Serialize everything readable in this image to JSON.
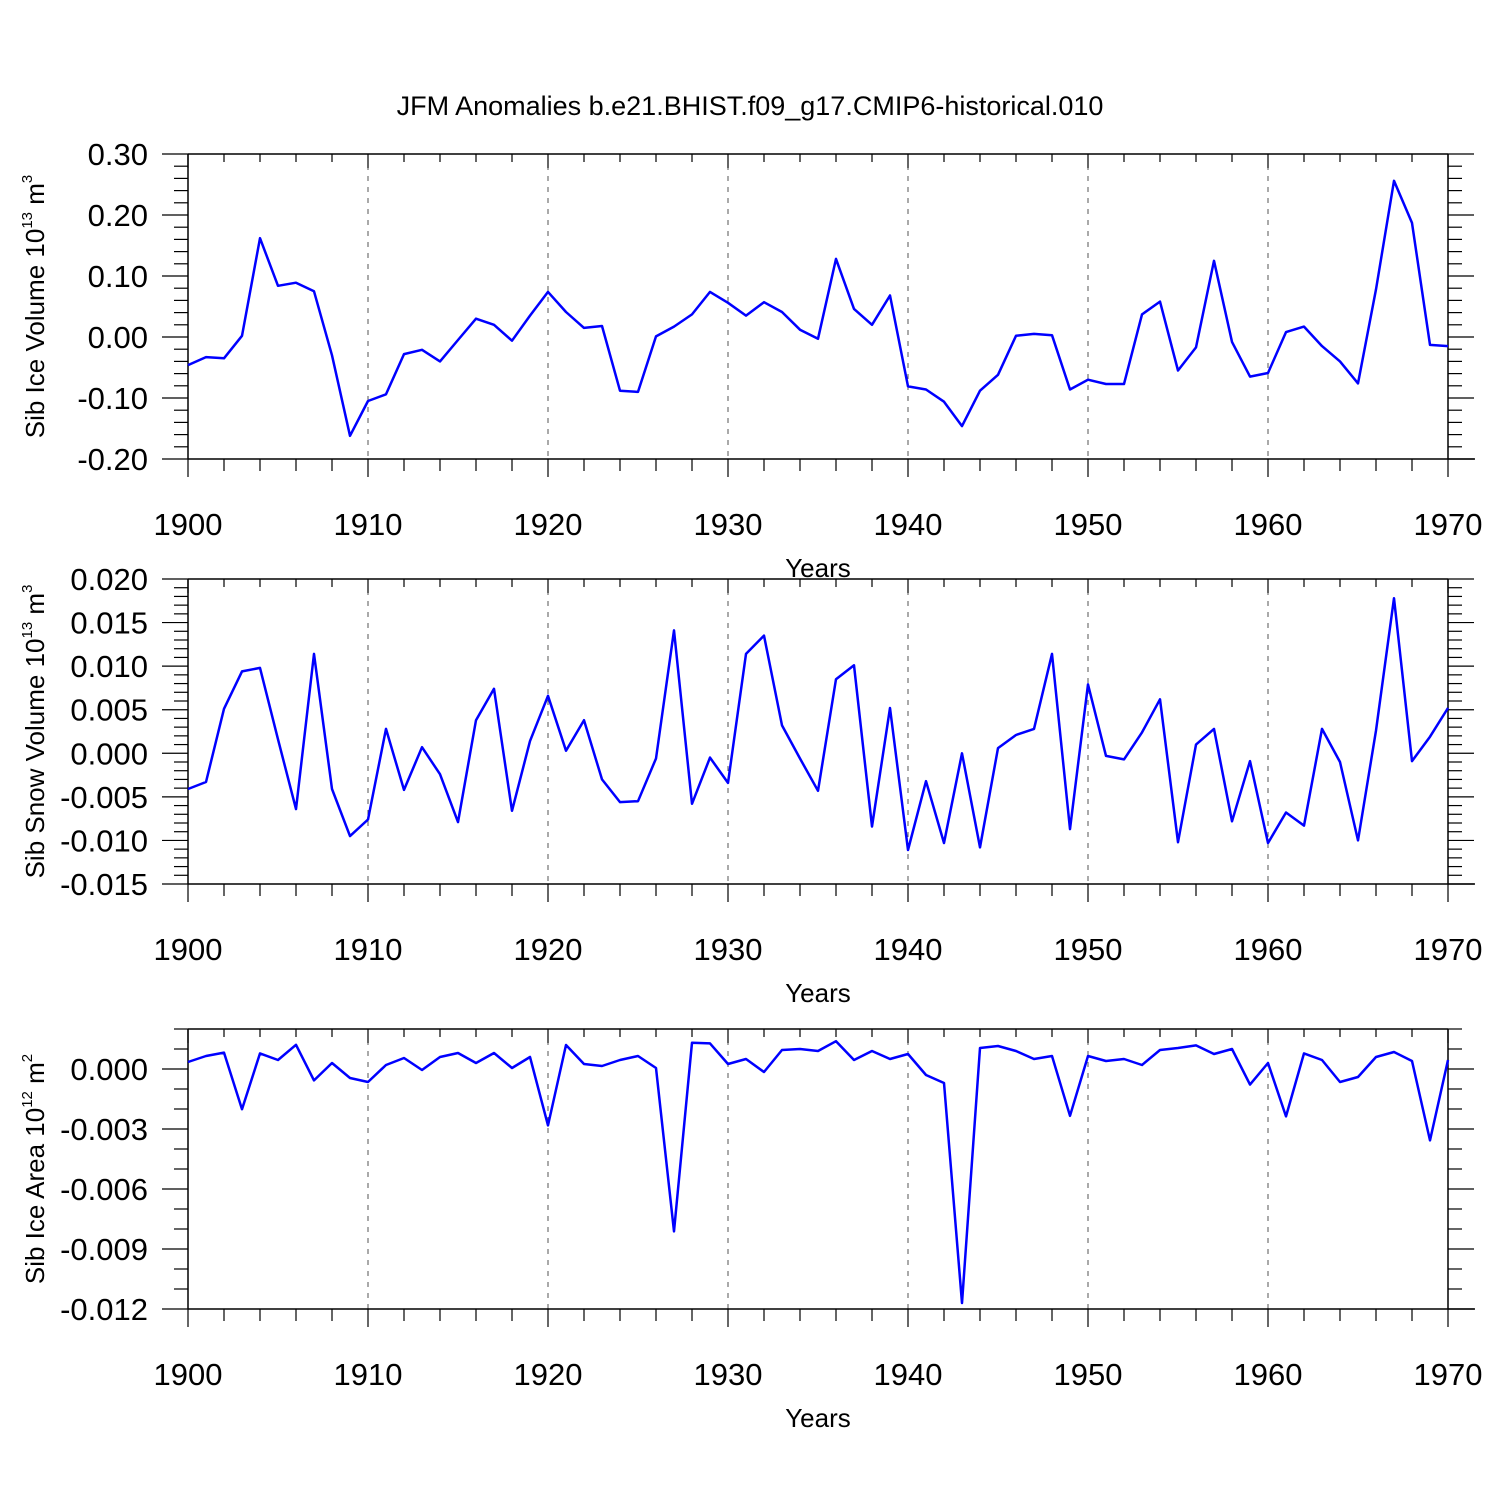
{
  "title": "JFM Anomalies b.e21.BHIST.f09_g17.CMIP6-historical.010",
  "colors": {
    "line": "#0000ff",
    "axis": "#000000",
    "grid": "#000000"
  },
  "chart_data": [
    {
      "type": "line",
      "title": "JFM Anomalies b.e21.BHIST.f09_g17.CMIP6-historical.010",
      "xlabel": "Years",
      "ylabel": {
        "base": "Sib Ice Volume 10",
        "exp": "13",
        "unit": " m",
        "unit_exp": "3"
      },
      "xlim": [
        1900,
        1970
      ],
      "ylim": [
        -0.2,
        0.3
      ],
      "x_ticks": [
        1900,
        1910,
        1920,
        1930,
        1940,
        1950,
        1960,
        1970
      ],
      "x_tick_labels": [
        "1900",
        "1910",
        "1920",
        "1930",
        "1940",
        "1950",
        "1960",
        "1970"
      ],
      "y_ticks": [
        -0.2,
        -0.1,
        0.0,
        0.1,
        0.2,
        0.3
      ],
      "y_tick_labels": [
        "-0.20",
        "-0.10",
        "0.00",
        "0.10",
        "0.20",
        "0.30"
      ],
      "y_minor_step": 0.02,
      "vertical_grid": "dashed at major x ticks",
      "series": [
        {
          "name": "Sib Ice Volume",
          "x": [
            1900,
            1901,
            1902,
            1903,
            1904,
            1905,
            1906,
            1907,
            1908,
            1909,
            1910,
            1911,
            1912,
            1913,
            1914,
            1915,
            1916,
            1917,
            1918,
            1919,
            1920,
            1921,
            1922,
            1923,
            1924,
            1925,
            1926,
            1927,
            1928,
            1929,
            1930,
            1931,
            1932,
            1933,
            1934,
            1935,
            1936,
            1937,
            1938,
            1939,
            1940,
            1941,
            1942,
            1943,
            1944,
            1945,
            1946,
            1947,
            1948,
            1949,
            1950,
            1951,
            1952,
            1953,
            1954,
            1955,
            1956,
            1957,
            1958,
            1959,
            1960,
            1961,
            1962,
            1963,
            1964,
            1965,
            1966,
            1967,
            1968,
            1969,
            1970
          ],
          "values": [
            -0.046,
            -0.033,
            -0.035,
            0.002,
            0.162,
            0.084,
            0.089,
            0.075,
            -0.03,
            -0.162,
            -0.105,
            -0.094,
            -0.028,
            -0.021,
            -0.04,
            -0.005,
            0.03,
            0.02,
            -0.006,
            0.035,
            0.074,
            0.041,
            0.015,
            0.018,
            -0.088,
            -0.09,
            0.001,
            0.017,
            0.037,
            0.074,
            0.056,
            0.035,
            0.057,
            0.041,
            0.012,
            -0.003,
            0.128,
            0.046,
            0.02,
            0.068,
            -0.081,
            -0.086,
            -0.106,
            -0.146,
            -0.088,
            -0.062,
            0.002,
            0.005,
            0.003,
            -0.086,
            -0.07,
            -0.077,
            -0.077,
            0.037,
            0.058,
            -0.055,
            -0.017,
            0.125,
            -0.008,
            -0.065,
            -0.059,
            0.008,
            0.017,
            -0.015,
            -0.04,
            -0.076,
            0.078,
            0.256,
            0.187,
            -0.013,
            -0.015
          ]
        }
      ]
    },
    {
      "type": "line",
      "xlabel": "Years",
      "ylabel": {
        "base": "Sib Snow Volume 10",
        "exp": "13",
        "unit": " m",
        "unit_exp": "3"
      },
      "xlim": [
        1900,
        1970
      ],
      "ylim": [
        -0.015,
        0.02
      ],
      "x_ticks": [
        1900,
        1910,
        1920,
        1930,
        1940,
        1950,
        1960,
        1970
      ],
      "x_tick_labels": [
        "1900",
        "1910",
        "1920",
        "1930",
        "1940",
        "1950",
        "1960",
        "1970"
      ],
      "y_ticks": [
        -0.015,
        -0.01,
        -0.005,
        0.0,
        0.005,
        0.01,
        0.015,
        0.02
      ],
      "y_tick_labels": [
        "-0.015",
        "-0.010",
        "-0.005",
        "0.000",
        "0.005",
        "0.010",
        "0.015",
        "0.020"
      ],
      "y_minor_step": 0.001,
      "vertical_grid": "dashed at major x ticks",
      "series": [
        {
          "name": "Sib Snow Volume",
          "x": [
            1900,
            1901,
            1902,
            1903,
            1904,
            1905,
            1906,
            1907,
            1908,
            1909,
            1910,
            1911,
            1912,
            1913,
            1914,
            1915,
            1916,
            1917,
            1918,
            1919,
            1920,
            1921,
            1922,
            1923,
            1924,
            1925,
            1926,
            1927,
            1928,
            1929,
            1930,
            1931,
            1932,
            1933,
            1934,
            1935,
            1936,
            1937,
            1938,
            1939,
            1940,
            1941,
            1942,
            1943,
            1944,
            1945,
            1946,
            1947,
            1948,
            1949,
            1950,
            1951,
            1952,
            1953,
            1954,
            1955,
            1956,
            1957,
            1958,
            1959,
            1960,
            1961,
            1962,
            1963,
            1964,
            1965,
            1966,
            1967,
            1968,
            1969,
            1970
          ],
          "values": [
            -0.0041,
            -0.0033,
            0.0051,
            0.0094,
            0.0098,
            0.0016,
            -0.0064,
            0.0114,
            -0.0041,
            -0.0095,
            -0.0076,
            0.0028,
            -0.0042,
            0.0007,
            -0.0024,
            -0.0079,
            0.0038,
            0.0074,
            -0.0066,
            0.0014,
            0.0066,
            0.0003,
            0.0038,
            -0.003,
            -0.0056,
            -0.0055,
            -0.0006,
            0.0141,
            -0.0058,
            -0.0005,
            -0.0034,
            0.0114,
            0.0135,
            0.0032,
            -0.0006,
            -0.0043,
            0.0085,
            0.0101,
            -0.0084,
            0.0052,
            -0.0111,
            -0.0032,
            -0.0103,
            0.0,
            -0.0108,
            0.0006,
            0.0021,
            0.0028,
            0.0114,
            -0.0087,
            0.0079,
            -0.0003,
            -0.0007,
            0.0024,
            0.0062,
            -0.0102,
            0.001,
            0.0028,
            -0.0078,
            -0.0009,
            -0.0103,
            -0.0068,
            -0.0083,
            0.0028,
            -0.001,
            -0.01,
            0.0026,
            0.0178,
            -0.0009,
            0.0019,
            0.0052
          ]
        }
      ]
    },
    {
      "type": "line",
      "xlabel": "Years",
      "ylabel": {
        "base": "Sib Ice Area 10",
        "exp": "12",
        "unit": " m",
        "unit_exp": "2"
      },
      "xlim": [
        1900,
        1970
      ],
      "ylim": [
        -0.012,
        0.002
      ],
      "x_ticks": [
        1900,
        1910,
        1920,
        1930,
        1940,
        1950,
        1960,
        1970
      ],
      "x_tick_labels": [
        "1900",
        "1910",
        "1920",
        "1930",
        "1940",
        "1950",
        "1960",
        "1970"
      ],
      "y_ticks": [
        -0.012,
        -0.009,
        -0.006,
        -0.003,
        0.0
      ],
      "y_tick_labels": [
        "-0.012",
        "-0.009",
        "-0.006",
        "-0.003",
        "0.000"
      ],
      "y_minor_step": 0.001,
      "vertical_grid": "dashed at major x ticks",
      "series": [
        {
          "name": "Sib Ice Area",
          "x": [
            1900,
            1901,
            1902,
            1903,
            1904,
            1905,
            1906,
            1907,
            1908,
            1909,
            1910,
            1911,
            1912,
            1913,
            1914,
            1915,
            1916,
            1917,
            1918,
            1919,
            1920,
            1921,
            1922,
            1923,
            1924,
            1925,
            1926,
            1927,
            1928,
            1929,
            1930,
            1931,
            1932,
            1933,
            1934,
            1935,
            1936,
            1937,
            1938,
            1939,
            1940,
            1941,
            1942,
            1943,
            1944,
            1945,
            1946,
            1947,
            1948,
            1949,
            1950,
            1951,
            1952,
            1953,
            1954,
            1955,
            1956,
            1957,
            1958,
            1959,
            1960,
            1961,
            1962,
            1963,
            1964,
            1965,
            1966,
            1967,
            1968,
            1969,
            1970
          ],
          "values": [
            0.00035,
            0.00065,
            0.00082,
            -0.00201,
            0.00078,
            0.00045,
            0.00121,
            -0.00057,
            0.0003,
            -0.00045,
            -0.00065,
            0.0002,
            0.00055,
            -5e-05,
            0.0006,
            0.0008,
            0.0003,
            0.0008,
            5e-05,
            0.0006,
            -0.00282,
            0.0012,
            0.00025,
            0.00015,
            0.00045,
            0.00065,
            5e-05,
            -0.00812,
            0.00131,
            0.00128,
            0.00025,
            0.0005,
            -0.00015,
            0.00095,
            0.001,
            0.0009,
            0.00139,
            0.00045,
            0.0009,
            0.0005,
            0.00075,
            -0.0003,
            -0.0007,
            -0.0117,
            0.00105,
            0.00115,
            0.0009,
            0.0005,
            0.00065,
            -0.00234,
            0.00065,
            0.0004,
            0.0005,
            0.0002,
            0.00095,
            0.00105,
            0.00118,
            0.00075,
            0.001,
            -0.00078,
            0.0003,
            -0.00237,
            0.00078,
            0.00045,
            -0.00065,
            -0.0004,
            0.0006,
            0.00085,
            0.0004,
            -0.00357,
            0.00045
          ]
        }
      ]
    }
  ]
}
